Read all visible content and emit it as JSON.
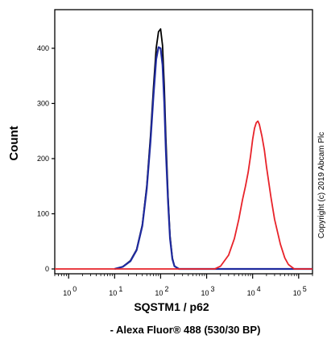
{
  "chart_data": {
    "type": "line",
    "xlabel": "SQSTM1 / p62",
    "xlabel_sub": "- Alexa Fluor® 488 (530/30 BP)",
    "ylabel": "Count",
    "x_scale": "log",
    "xlim": [
      0.5,
      200000
    ],
    "ylim": [
      0,
      470
    ],
    "x_ticks": [
      {
        "value": 1,
        "label": "10",
        "exp": "0"
      },
      {
        "value": 10,
        "label": "10",
        "exp": "1"
      },
      {
        "value": 100,
        "label": "10",
        "exp": "2"
      },
      {
        "value": 1000,
        "label": "10",
        "exp": "3"
      },
      {
        "value": 10000,
        "label": "10",
        "exp": "4"
      },
      {
        "value": 100000,
        "label": "10",
        "exp": "5"
      }
    ],
    "y_ticks": [
      0,
      100,
      200,
      300,
      400
    ],
    "copyright": "Copyright (c) 2019 Abcam Plc",
    "series": [
      {
        "color": "#000000",
        "x": [
          10,
          15,
          22,
          30,
          40,
          50,
          60,
          70,
          80,
          90,
          100,
          110,
          120,
          130,
          145,
          160,
          180,
          200,
          250,
          2000,
          200000
        ],
        "y": [
          0,
          4,
          15,
          35,
          80,
          150,
          240,
          330,
          400,
          430,
          435,
          405,
          330,
          240,
          130,
          60,
          20,
          5,
          0,
          0,
          0
        ]
      },
      {
        "color": "#1f2a9e",
        "x": [
          10,
          15,
          22,
          30,
          40,
          50,
          60,
          70,
          80,
          90,
          100,
          110,
          120,
          130,
          145,
          160,
          180,
          200,
          250,
          2000,
          200000
        ],
        "y": [
          0,
          4,
          14,
          34,
          78,
          145,
          230,
          315,
          380,
          402,
          400,
          370,
          300,
          215,
          120,
          55,
          18,
          5,
          0,
          0,
          0
        ]
      },
      {
        "color": "#e8232a",
        "x": [
          0.5,
          1500,
          2000,
          3000,
          4000,
          5000,
          6000,
          7000,
          8000,
          9000,
          10000,
          11000,
          12000,
          13000,
          14000,
          16000,
          18000,
          20000,
          25000,
          30000,
          40000,
          50000,
          60000,
          80000,
          200000
        ],
        "y": [
          0,
          0,
          5,
          25,
          55,
          90,
          125,
          150,
          175,
          205,
          235,
          255,
          265,
          268,
          262,
          240,
          215,
          185,
          130,
          90,
          45,
          20,
          8,
          0,
          0
        ]
      }
    ]
  }
}
